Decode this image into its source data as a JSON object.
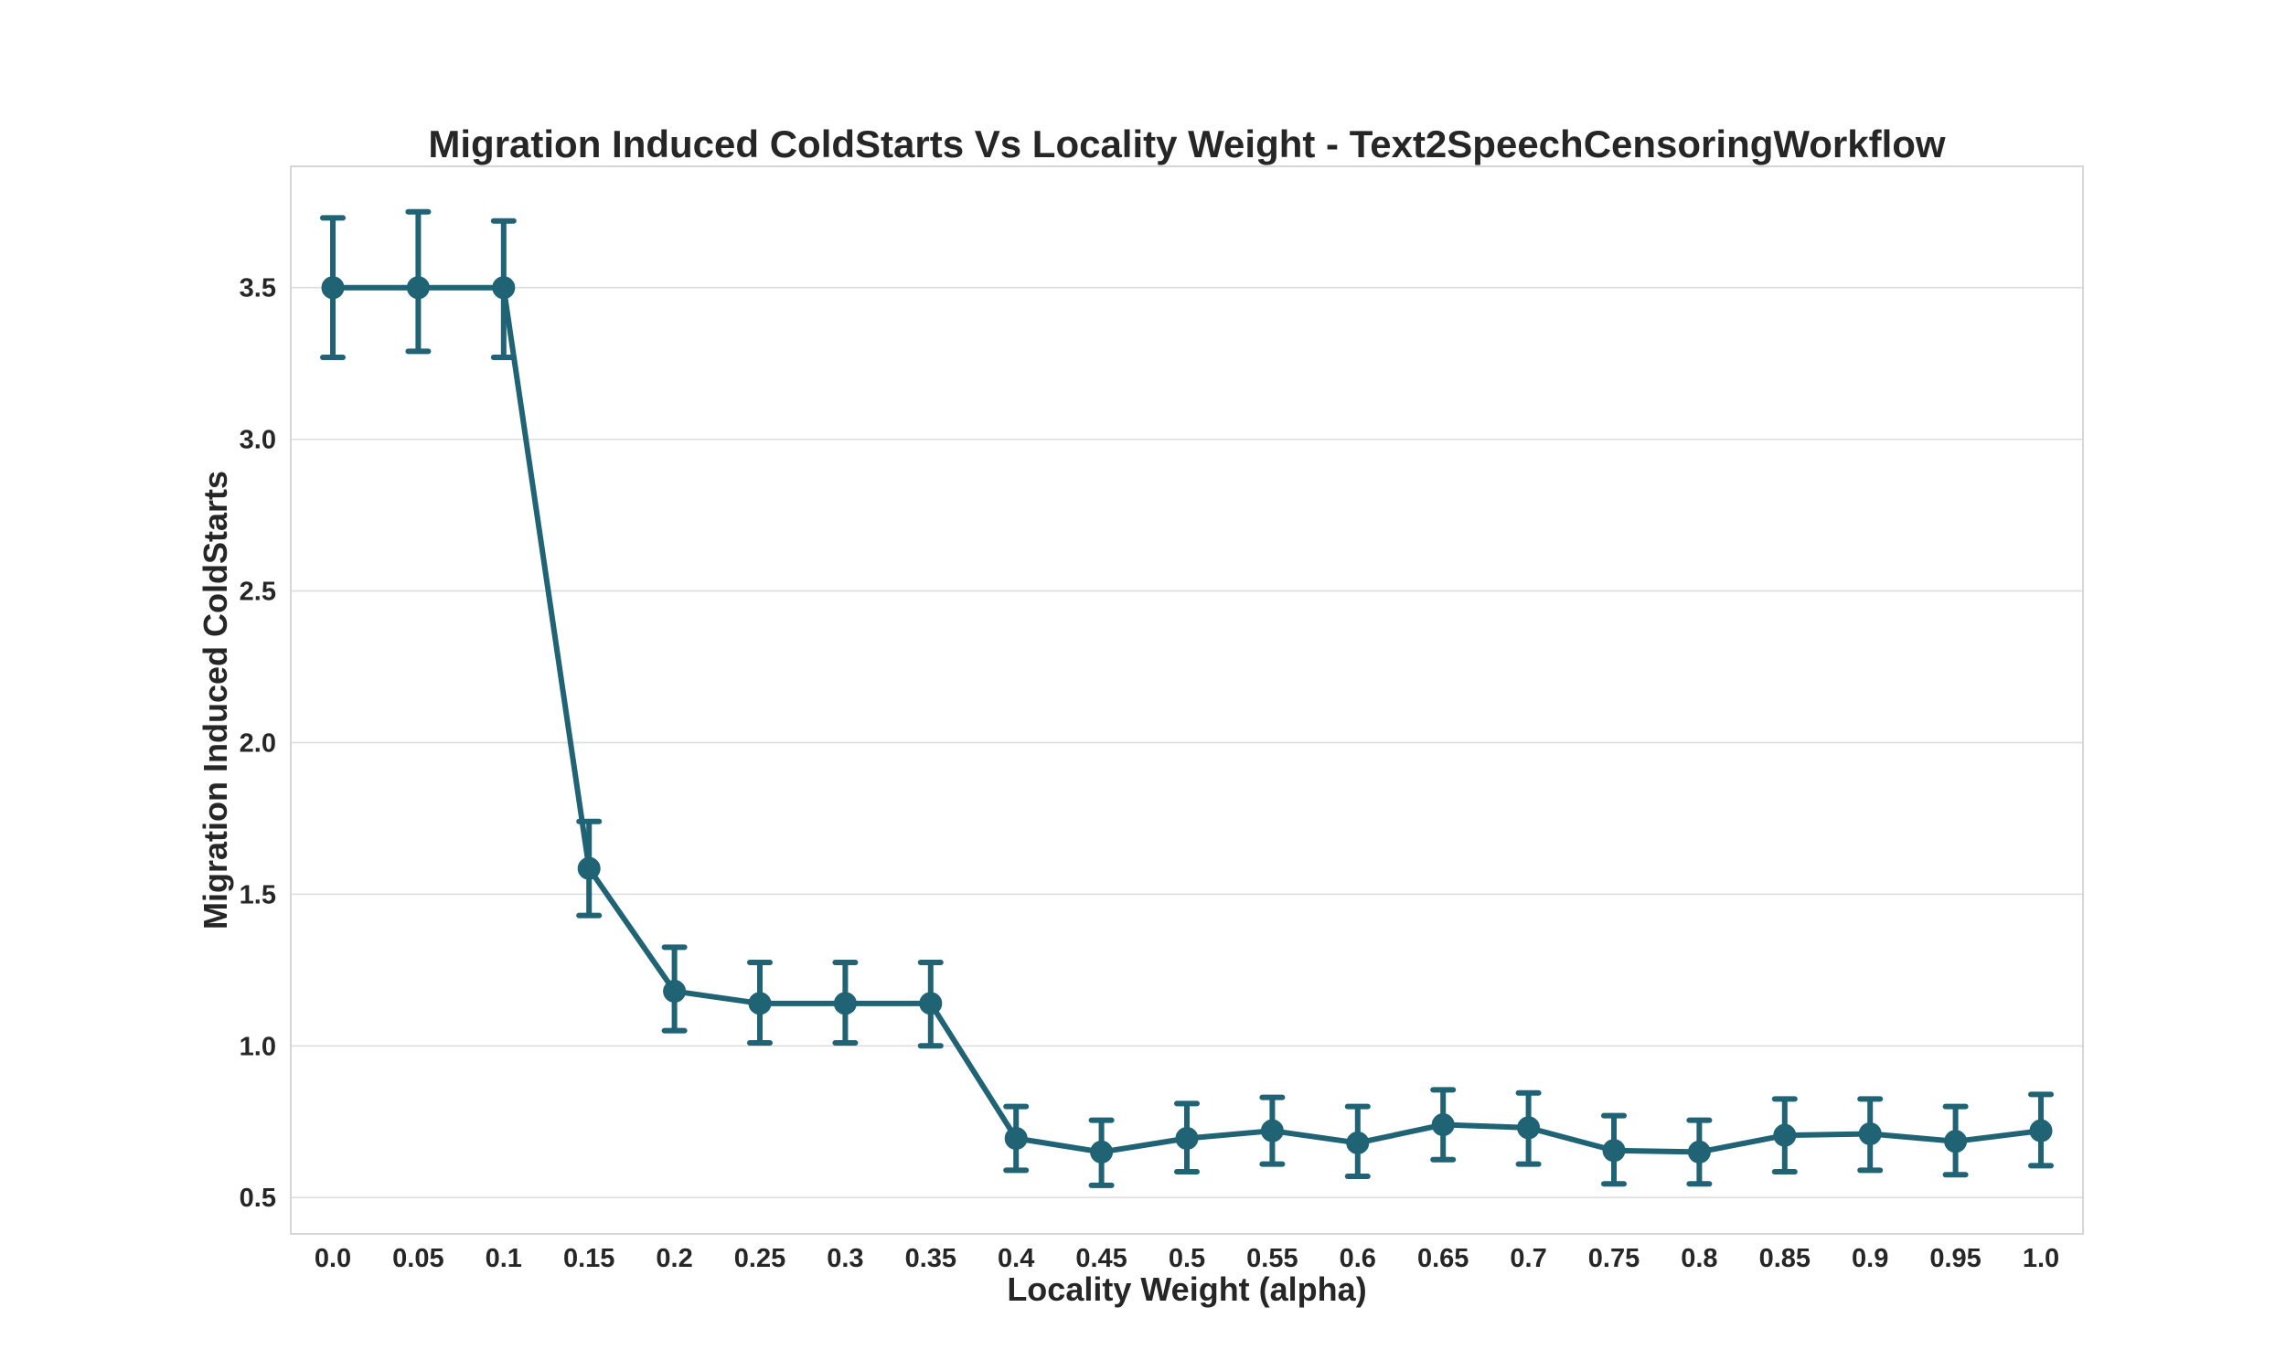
{
  "chart_data": {
    "type": "line",
    "title": "Migration Induced ColdStarts Vs Locality Weight - Text2SpeechCensoringWorkflow",
    "xlabel": "Locality Weight (alpha)",
    "ylabel": "Migration Induced ColdStarts",
    "categories": [
      "0.0",
      "0.05",
      "0.1",
      "0.15",
      "0.2",
      "0.25",
      "0.3",
      "0.35",
      "0.4",
      "0.45",
      "0.5",
      "0.55",
      "0.6",
      "0.65",
      "0.7",
      "0.75",
      "0.8",
      "0.85",
      "0.9",
      "0.95",
      "1.0"
    ],
    "series": [
      {
        "values": [
          3.5,
          3.5,
          3.5,
          1.585,
          1.18,
          1.14,
          1.14,
          1.14,
          0.695,
          0.65,
          0.695,
          0.72,
          0.68,
          0.74,
          0.73,
          0.655,
          0.65,
          0.705,
          0.71,
          0.685,
          0.72
        ],
        "err_low": [
          3.27,
          3.29,
          3.27,
          1.43,
          1.05,
          1.01,
          1.01,
          1.0,
          0.59,
          0.54,
          0.585,
          0.61,
          0.57,
          0.625,
          0.61,
          0.545,
          0.545,
          0.585,
          0.59,
          0.575,
          0.605
        ],
        "err_high": [
          3.73,
          3.75,
          3.72,
          1.74,
          1.325,
          1.275,
          1.275,
          1.275,
          0.8,
          0.755,
          0.81,
          0.83,
          0.8,
          0.855,
          0.845,
          0.77,
          0.755,
          0.825,
          0.825,
          0.8,
          0.84
        ]
      }
    ],
    "yticks": [
      "0.5",
      "1.0",
      "1.5",
      "2.0",
      "2.5",
      "3.0",
      "3.5"
    ],
    "ylim": [
      0.38,
      3.9
    ],
    "grid": "horizontal",
    "color": "#1f6375"
  }
}
